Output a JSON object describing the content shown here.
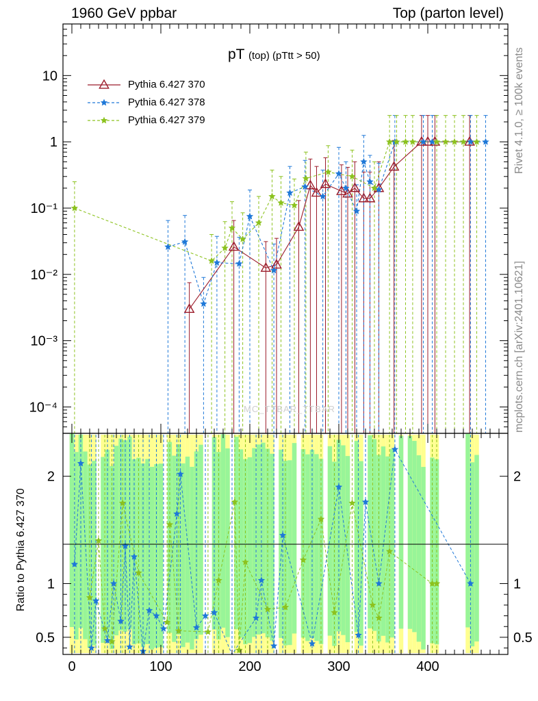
{
  "header": {
    "left": "1960 GeV ppbar",
    "right": "Top (parton level)"
  },
  "plot_title": {
    "main": "pT",
    "sub": "(top) (pTtt > 50)"
  },
  "side_notes": {
    "rivet": "Rivet 4.1.0, ≥ 100k events",
    "mcplots": "mcplots.cern.ch [arXiv:2401.10621]"
  },
  "watermark": "MC_TTBAR_TTBAR",
  "colors": {
    "s370": "#9b1b2a",
    "s378": "#1e78d8",
    "s379": "#8cc21e",
    "band_green": "#98f598",
    "band_yellow": "#ffff90"
  },
  "chart_data": [
    {
      "type": "scatter",
      "panel": "main",
      "yscale": "log",
      "xlim": [
        -10,
        490
      ],
      "ylim": [
        4e-05,
        60
      ],
      "yticks": [
        {
          "value": 0.0001,
          "label": "10⁻⁴"
        },
        {
          "value": 0.001,
          "label": "10⁻³"
        },
        {
          "value": 0.01,
          "label": "10⁻²"
        },
        {
          "value": 0.1,
          "label": "10⁻¹"
        },
        {
          "value": 1,
          "label": "1"
        },
        {
          "value": 10,
          "label": "10"
        }
      ],
      "legend": [
        "Pythia 6.427 370",
        "Pythia 6.427 378",
        "Pythia 6.427 379"
      ],
      "series": [
        {
          "name": "Pythia 6.427 370",
          "marker": "triangle",
          "points": [
            {
              "x": 132,
              "y": 0.003
            },
            {
              "x": 182,
              "y": 0.026
            },
            {
              "x": 218,
              "y": 0.0125
            },
            {
              "x": 230,
              "y": 0.014
            },
            {
              "x": 255,
              "y": 0.052
            },
            {
              "x": 268,
              "y": 0.22
            },
            {
              "x": 275,
              "y": 0.17
            },
            {
              "x": 285,
              "y": 0.23
            },
            {
              "x": 303,
              "y": 0.18
            },
            {
              "x": 310,
              "y": 0.165
            },
            {
              "x": 318,
              "y": 0.2
            },
            {
              "x": 328,
              "y": 0.14
            },
            {
              "x": 335,
              "y": 0.14
            },
            {
              "x": 345,
              "y": 0.2
            },
            {
              "x": 362,
              "y": 0.42
            },
            {
              "x": 393,
              "y": 1.0
            },
            {
              "x": 400,
              "y": 1.0
            },
            {
              "x": 408,
              "y": 1.0
            },
            {
              "x": 447,
              "y": 1.0
            }
          ]
        },
        {
          "name": "Pythia 6.427 378",
          "marker": "star",
          "points": [
            {
              "x": 108,
              "y": 0.026
            },
            {
              "x": 127,
              "y": 0.031
            },
            {
              "x": 148,
              "y": 0.0036
            },
            {
              "x": 163,
              "y": 0.015
            },
            {
              "x": 188,
              "y": 0.0145
            },
            {
              "x": 200,
              "y": 0.075
            },
            {
              "x": 227,
              "y": 0.0115
            },
            {
              "x": 245,
              "y": 0.17
            },
            {
              "x": 262,
              "y": 0.21
            },
            {
              "x": 282,
              "y": 0.15
            },
            {
              "x": 300,
              "y": 0.33
            },
            {
              "x": 308,
              "y": 0.2
            },
            {
              "x": 320,
              "y": 0.09
            },
            {
              "x": 328,
              "y": 0.5
            },
            {
              "x": 335,
              "y": 0.25
            },
            {
              "x": 345,
              "y": 0.19
            },
            {
              "x": 363,
              "y": 1.0
            },
            {
              "x": 395,
              "y": 1.0
            },
            {
              "x": 405,
              "y": 1.0
            },
            {
              "x": 448,
              "y": 1.0
            },
            {
              "x": 465,
              "y": 1.0
            }
          ]
        },
        {
          "name": "Pythia 6.427 379",
          "marker": "star",
          "points": [
            {
              "x": 3,
              "y": 0.1
            },
            {
              "x": 157,
              "y": 0.016
            },
            {
              "x": 172,
              "y": 0.025
            },
            {
              "x": 180,
              "y": 0.05
            },
            {
              "x": 192,
              "y": 0.034
            },
            {
              "x": 210,
              "y": 0.06
            },
            {
              "x": 225,
              "y": 0.15
            },
            {
              "x": 235,
              "y": 0.12
            },
            {
              "x": 250,
              "y": 0.11
            },
            {
              "x": 263,
              "y": 0.28
            },
            {
              "x": 288,
              "y": 0.35
            },
            {
              "x": 315,
              "y": 0.3
            },
            {
              "x": 340,
              "y": 0.2
            },
            {
              "x": 357,
              "y": 1.0
            },
            {
              "x": 365,
              "y": 1.0
            },
            {
              "x": 375,
              "y": 1.0
            },
            {
              "x": 383,
              "y": 1.0
            },
            {
              "x": 410,
              "y": 1.0
            },
            {
              "x": 420,
              "y": 1.0
            },
            {
              "x": 430,
              "y": 1.0
            },
            {
              "x": 440,
              "y": 1.0
            },
            {
              "x": 455,
              "y": 1.0
            }
          ]
        }
      ]
    },
    {
      "type": "scatter",
      "panel": "ratio",
      "ylabel": "Ratio to Pythia 6.427 370",
      "xlim": [
        -10,
        490
      ],
      "ylim": [
        0.34,
        2.4
      ],
      "yticks": [
        {
          "value": 0.5,
          "label": "0.5"
        },
        {
          "value": 1,
          "label": "1"
        },
        {
          "value": 2,
          "label": "2"
        }
      ],
      "xticks": [
        0,
        100,
        200,
        300,
        400
      ],
      "series": [
        {
          "name": "Pythia 6.427 378",
          "points": [
            {
              "x": 3,
              "y": 1.18
            },
            {
              "x": 10,
              "y": 2.12
            },
            {
              "x": 22,
              "y": 0.4
            },
            {
              "x": 27,
              "y": 0.84
            },
            {
              "x": 40,
              "y": 0.47
            },
            {
              "x": 47,
              "y": 1.0
            },
            {
              "x": 55,
              "y": 0.65
            },
            {
              "x": 60,
              "y": 1.35
            },
            {
              "x": 65,
              "y": 0.41
            },
            {
              "x": 70,
              "y": 1.25
            },
            {
              "x": 80,
              "y": 0.37
            },
            {
              "x": 87,
              "y": 0.75
            },
            {
              "x": 95,
              "y": 0.7
            },
            {
              "x": 103,
              "y": 0.58
            },
            {
              "x": 118,
              "y": 1.65
            },
            {
              "x": 122,
              "y": 2.02
            },
            {
              "x": 140,
              "y": 0.59
            },
            {
              "x": 150,
              "y": 0.7
            },
            {
              "x": 160,
              "y": 0.73
            },
            {
              "x": 180,
              "y": 0.33
            },
            {
              "x": 207,
              "y": 0.68
            },
            {
              "x": 213,
              "y": 1.03
            },
            {
              "x": 227,
              "y": 0.42
            },
            {
              "x": 237,
              "y": 1.45
            },
            {
              "x": 270,
              "y": 0.44
            },
            {
              "x": 300,
              "y": 1.9
            },
            {
              "x": 322,
              "y": 0.52
            },
            {
              "x": 330,
              "y": 1.76
            },
            {
              "x": 345,
              "y": 1.0
            },
            {
              "x": 363,
              "y": 2.25
            },
            {
              "x": 448,
              "y": 1.0
            }
          ]
        },
        {
          "name": "Pythia 6.427 379",
          "points": [
            {
              "x": 20,
              "y": 0.87
            },
            {
              "x": 30,
              "y": 1.4
            },
            {
              "x": 37,
              "y": 0.58
            },
            {
              "x": 45,
              "y": 0.46
            },
            {
              "x": 57,
              "y": 1.75
            },
            {
              "x": 75,
              "y": 1.1
            },
            {
              "x": 107,
              "y": 0.64
            },
            {
              "x": 110,
              "y": 1.55
            },
            {
              "x": 120,
              "y": 0.56
            },
            {
              "x": 153,
              "y": 0.55
            },
            {
              "x": 165,
              "y": 1.03
            },
            {
              "x": 183,
              "y": 1.76
            },
            {
              "x": 188,
              "y": 0.38
            },
            {
              "x": 195,
              "y": 1.2
            },
            {
              "x": 220,
              "y": 0.76
            },
            {
              "x": 240,
              "y": 0.78
            },
            {
              "x": 260,
              "y": 1.22
            },
            {
              "x": 280,
              "y": 1.6
            },
            {
              "x": 295,
              "y": 0.73
            },
            {
              "x": 315,
              "y": 1.75
            },
            {
              "x": 338,
              "y": 0.8
            },
            {
              "x": 345,
              "y": 0.68
            },
            {
              "x": 357,
              "y": 1.3
            },
            {
              "x": 405,
              "y": 1.0
            },
            {
              "x": 410,
              "y": 1.0
            }
          ]
        }
      ]
    }
  ]
}
